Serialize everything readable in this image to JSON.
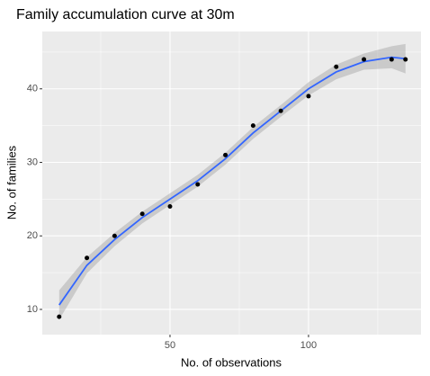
{
  "chart_data": {
    "type": "scatter",
    "title": "Family accumulation curve at 30m",
    "x_label": "No. of observations",
    "y_label": "No. of families",
    "x": [
      10,
      20,
      30,
      40,
      50,
      60,
      70,
      80,
      90,
      100,
      110,
      120,
      130,
      135
    ],
    "series": [
      {
        "role": "points",
        "color": "#000000",
        "values": [
          9,
          17,
          20,
          23,
          24,
          27,
          31,
          35,
          37,
          39,
          43,
          44,
          44,
          44
        ]
      },
      {
        "role": "fit",
        "color": "#3366FF",
        "values": [
          10.6,
          16,
          19.5,
          22.5,
          25,
          27.5,
          30.5,
          34,
          37,
          40,
          42.3,
          43.7,
          44.3,
          44.1
        ]
      },
      {
        "role": "lower",
        "color": "#999999",
        "values": [
          8.6,
          14.9,
          18.6,
          21.7,
          24.2,
          26.7,
          29.7,
          33.2,
          36.2,
          39.1,
          41.3,
          42.6,
          42.8,
          42.1
        ]
      },
      {
        "role": "upper",
        "color": "#999999",
        "values": [
          12.6,
          17.1,
          20.4,
          23.3,
          25.8,
          28.3,
          31.3,
          34.8,
          37.8,
          40.9,
          43.3,
          44.8,
          45.8,
          46.1
        ]
      }
    ],
    "xlim": [
      3.9,
      140.6
    ],
    "ylim": [
      6.57,
      47.8
    ],
    "xticks": [
      50,
      100
    ],
    "yticks": [
      10,
      20,
      30,
      40
    ],
    "x_minor_grid": [
      25,
      75,
      125
    ],
    "y_minor_grid": [
      15,
      25,
      35,
      45
    ],
    "grid": true,
    "panel_color": "#EBEBEB"
  }
}
